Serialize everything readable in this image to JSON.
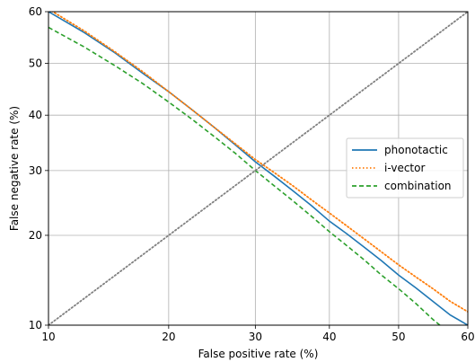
{
  "chart_data": {
    "type": "line",
    "title": "",
    "xlabel": "False positive rate (%)",
    "ylabel": "False negative rate (%)",
    "xlim": [
      10,
      60
    ],
    "ylim": [
      10,
      60
    ],
    "xticks": [
      10,
      20,
      30,
      40,
      50,
      60
    ],
    "yticks": [
      10,
      20,
      30,
      40,
      50,
      60
    ],
    "scale": "normal-deviate (DET)",
    "grid": true,
    "legend_position": "center-right",
    "series": [
      {
        "name": "phonotactic",
        "color": "#1f77b4",
        "style": "solid",
        "points": [
          [
            10,
            60
          ],
          [
            12.5,
            56
          ],
          [
            15,
            52
          ],
          [
            17.5,
            48
          ],
          [
            20,
            44.5
          ],
          [
            22.5,
            41
          ],
          [
            25,
            37.7
          ],
          [
            27.5,
            34.5
          ],
          [
            30,
            31.5
          ],
          [
            32.5,
            29
          ],
          [
            35,
            26.6
          ],
          [
            37.5,
            24.3
          ],
          [
            40,
            22
          ],
          [
            42.5,
            20.2
          ],
          [
            45,
            18.4
          ],
          [
            47.5,
            16.7
          ],
          [
            50,
            15
          ],
          [
            52.5,
            13.6
          ],
          [
            55,
            12.2
          ],
          [
            57.5,
            10.9
          ],
          [
            60,
            10
          ]
        ]
      },
      {
        "name": "i-vector",
        "color": "#ff7f0e",
        "style": "dotted",
        "points": [
          [
            10,
            60.5
          ],
          [
            12.5,
            56.3
          ],
          [
            15,
            52.2
          ],
          [
            17.5,
            48.3
          ],
          [
            20,
            44.5
          ],
          [
            22.5,
            41
          ],
          [
            25,
            37.7
          ],
          [
            27.5,
            34.7
          ],
          [
            30,
            31.9
          ],
          [
            32.5,
            29.6
          ],
          [
            35,
            27.4
          ],
          [
            37.5,
            25.2
          ],
          [
            40,
            23.2
          ],
          [
            42.5,
            21.3
          ],
          [
            45,
            19.5
          ],
          [
            47.5,
            17.8
          ],
          [
            50,
            16.2
          ],
          [
            52.5,
            14.8
          ],
          [
            55,
            13.5
          ],
          [
            57.5,
            12.2
          ],
          [
            60,
            11.2
          ]
        ]
      },
      {
        "name": "combination",
        "color": "#2ca02c",
        "style": "dashed",
        "points": [
          [
            10,
            57
          ],
          [
            12.5,
            53.2
          ],
          [
            15,
            49.5
          ],
          [
            17.5,
            46
          ],
          [
            20,
            42.5
          ],
          [
            22.5,
            39.2
          ],
          [
            25,
            36
          ],
          [
            27.5,
            33
          ],
          [
            30,
            30
          ],
          [
            32.5,
            27.4
          ],
          [
            35,
            25
          ],
          [
            37.5,
            22.7
          ],
          [
            40,
            20.5
          ],
          [
            42.5,
            18.6
          ],
          [
            45,
            16.8
          ],
          [
            47.5,
            15
          ],
          [
            50,
            13.5
          ],
          [
            52.5,
            12
          ],
          [
            55,
            10.5
          ],
          [
            56,
            10
          ]
        ]
      },
      {
        "name": "",
        "color": "#808080",
        "style": "dotted",
        "points": [
          [
            10,
            10
          ],
          [
            60,
            60
          ]
        ]
      }
    ]
  }
}
